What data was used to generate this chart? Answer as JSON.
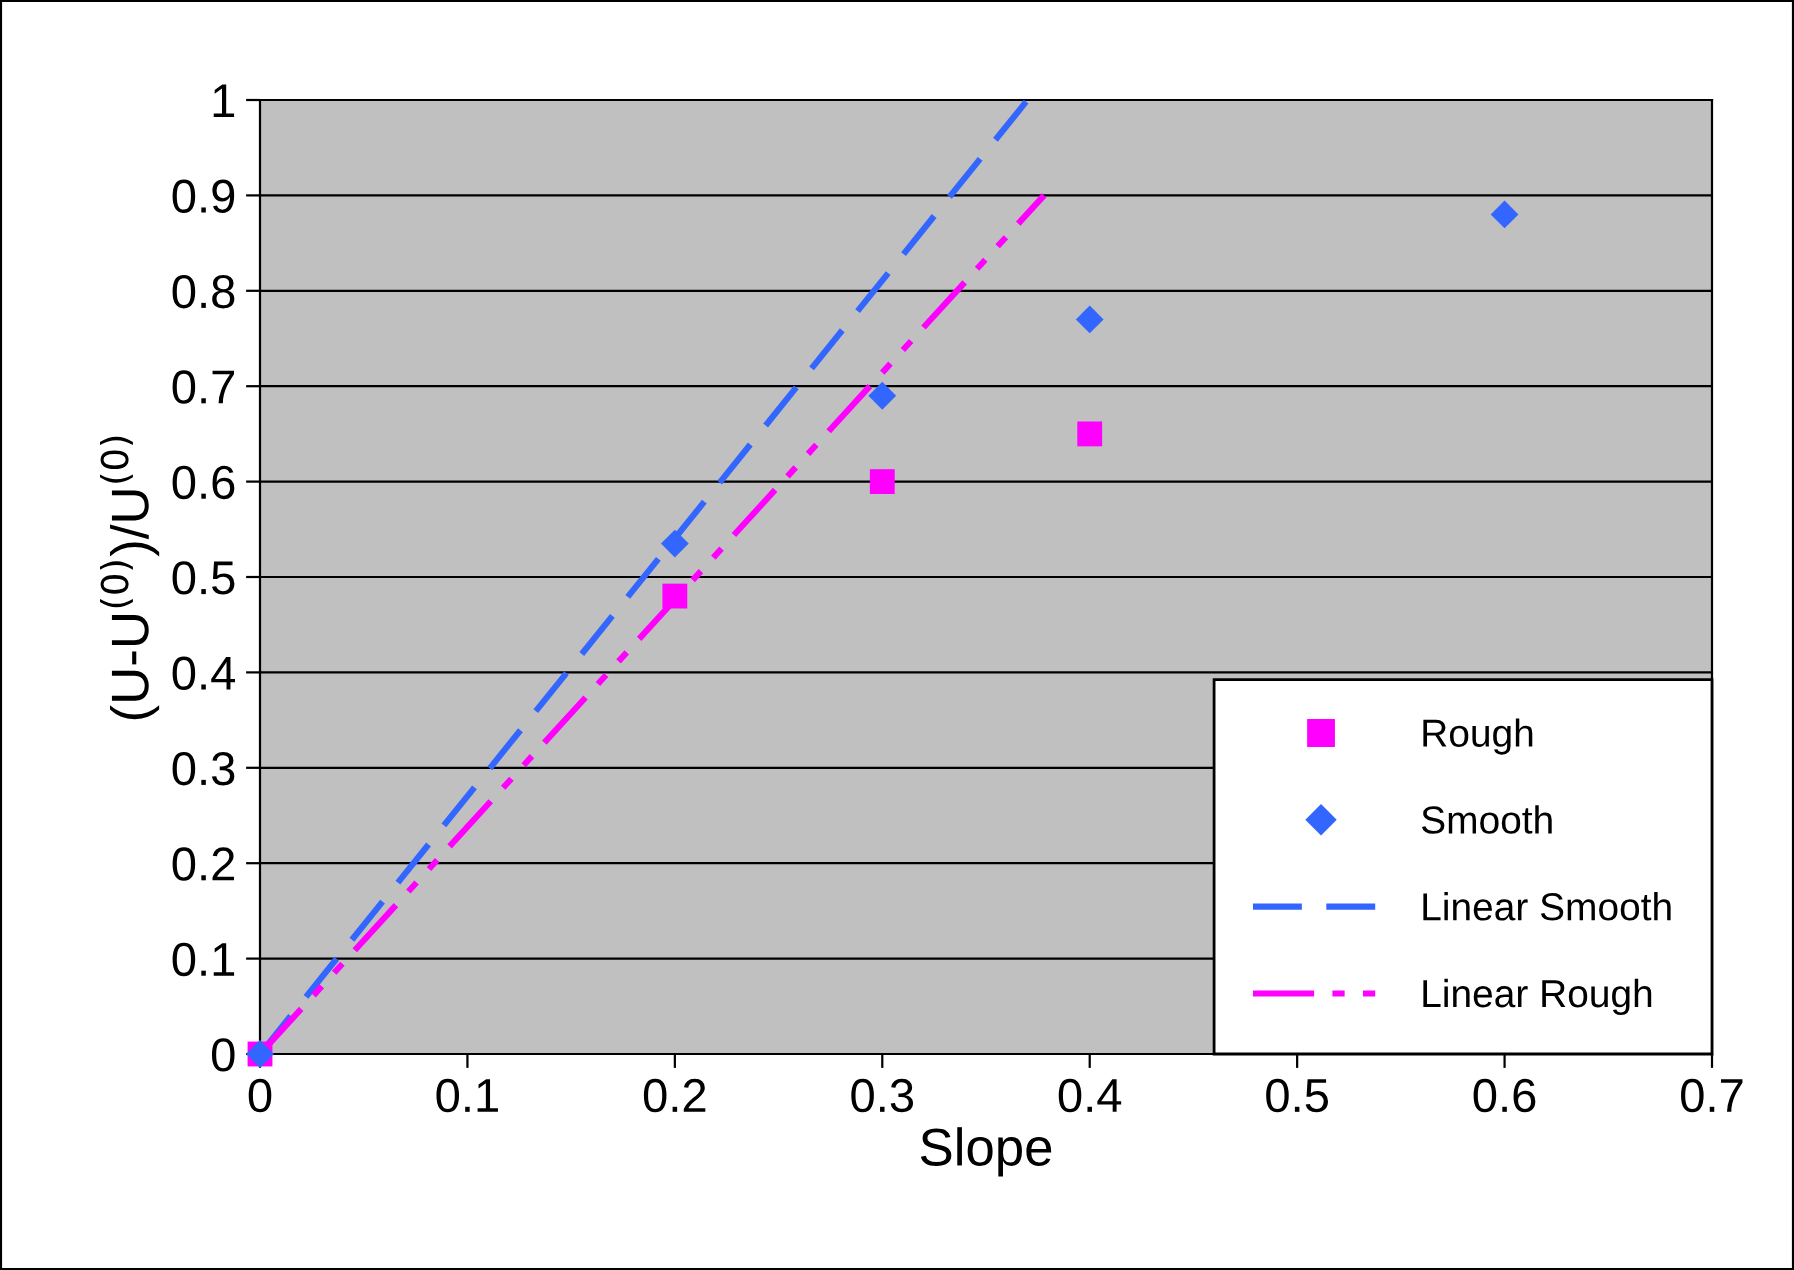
{
  "chart_data": {
    "type": "scatter",
    "xlabel": "Slope",
    "ylabel": "(U-U$^{(0)}$)/U$^{(0)}$",
    "xlim": [
      0,
      0.7
    ],
    "xticks": [
      0,
      0.1,
      0.2,
      0.3,
      0.4,
      0.5,
      0.6,
      0.7
    ],
    "ylim": [
      0,
      1
    ],
    "yticks": [
      0,
      0.1,
      0.2,
      0.3,
      0.4,
      0.5,
      0.6,
      0.7,
      0.8,
      0.9,
      1
    ],
    "grid": "y",
    "legend": "bottom right",
    "series": [
      {
        "name": "Rough",
        "marker": "square",
        "color": "#ff00ff",
        "x": [
          0,
          0.2,
          0.3,
          0.4
        ],
        "values": [
          0,
          0.48,
          0.6,
          0.65
        ]
      },
      {
        "name": "Smooth",
        "marker": "diamond",
        "color": "#3366ff",
        "x": [
          0,
          0.2,
          0.3,
          0.4,
          0.6
        ],
        "values": [
          0,
          0.535,
          0.69,
          0.77,
          0.88
        ]
      },
      {
        "name": "Linear Smooth",
        "type": "line",
        "line_style": "dashed",
        "color": "#3366ff",
        "x": [
          0,
          0.37
        ],
        "values": [
          0,
          1.0
        ]
      },
      {
        "name": "Linear Rough",
        "type": "line",
        "line_style": "dashdot",
        "color": "#ff00ff",
        "x": [
          0,
          0.378
        ],
        "values": [
          0,
          0.9
        ]
      }
    ]
  }
}
